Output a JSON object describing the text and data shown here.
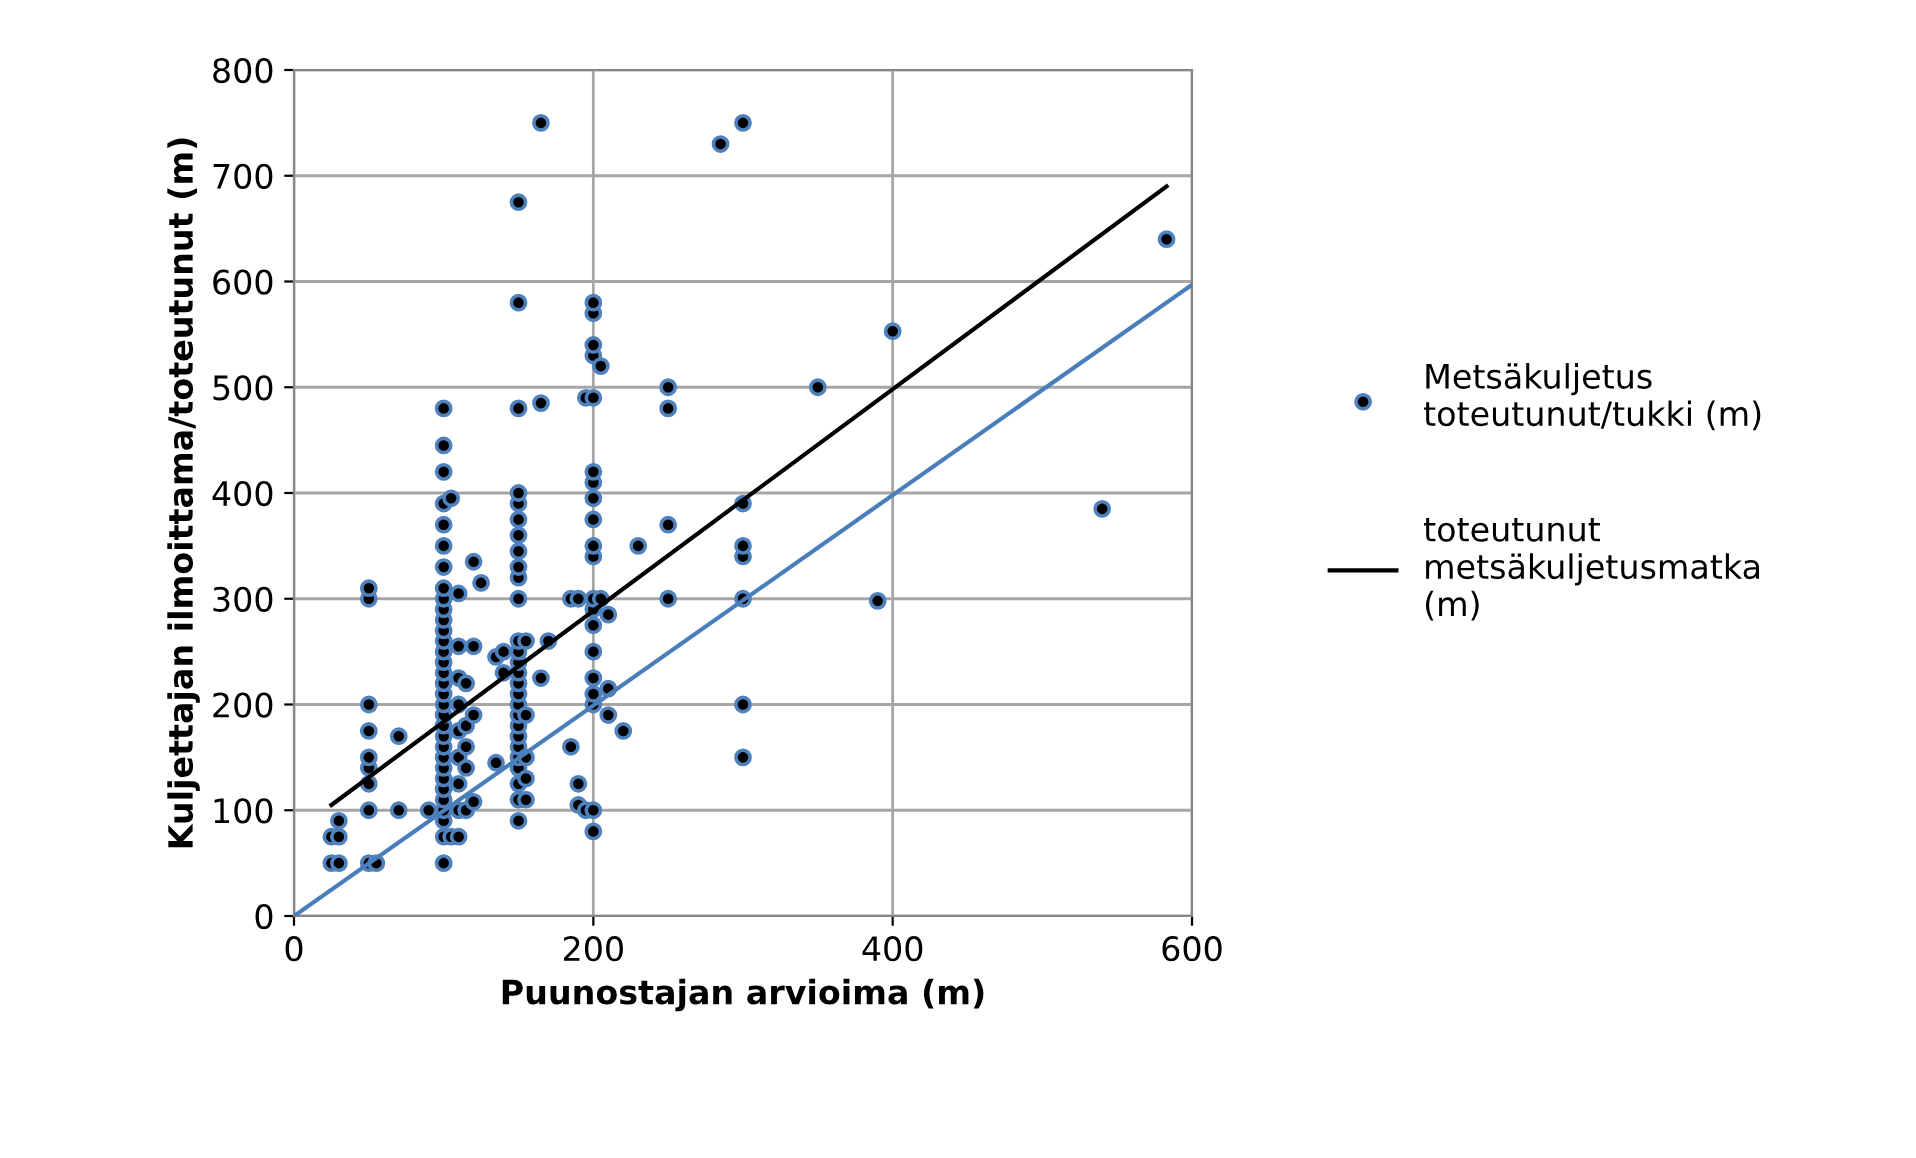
{
  "chart_data": {
    "type": "scatter",
    "xlabel": "Puunostajan arvioima (m)",
    "ylabel": "Kuljettajan ilmoittama/toteutunut (m)",
    "xlim": [
      0,
      600
    ],
    "xticks": [
      0,
      200,
      400,
      600
    ],
    "ylim": [
      0,
      800
    ],
    "yticks": [
      0,
      100,
      200,
      300,
      400,
      500,
      600,
      700,
      800
    ],
    "grid": true,
    "legend": "right",
    "marker": "circle",
    "series": [
      {
        "name": "Metsäkuljetus toteutunut/tukki (m)",
        "color": "#000000",
        "x": [
          25,
          30,
          25,
          30,
          30,
          50,
          50,
          50,
          50,
          50,
          50,
          50,
          50,
          50,
          55,
          70,
          70,
          90,
          100,
          100,
          100,
          100,
          100,
          100,
          100,
          100,
          100,
          100,
          100,
          100,
          100,
          100,
          100,
          100,
          100,
          100,
          100,
          100,
          100,
          100,
          100,
          100,
          100,
          100,
          100,
          100,
          100,
          100,
          100,
          100,
          105,
          105,
          110,
          110,
          110,
          110,
          110,
          110,
          110,
          110,
          110,
          115,
          115,
          115,
          115,
          115,
          120,
          120,
          120,
          120,
          125,
          135,
          135,
          140,
          140,
          150,
          150,
          150,
          150,
          150,
          150,
          150,
          150,
          150,
          150,
          150,
          150,
          150,
          150,
          150,
          150,
          150,
          150,
          150,
          150,
          150,
          150,
          150,
          150,
          150,
          150,
          150,
          155,
          155,
          155,
          155,
          155,
          165,
          165,
          165,
          170,
          185,
          185,
          190,
          190,
          190,
          195,
          195,
          200,
          200,
          200,
          200,
          200,
          200,
          200,
          200,
          200,
          200,
          200,
          200,
          200,
          200,
          200,
          200,
          200,
          200,
          200,
          200,
          205,
          205,
          210,
          210,
          210,
          220,
          230,
          250,
          250,
          250,
          250,
          285,
          300,
          300,
          300,
          300,
          300,
          300,
          300,
          350,
          390,
          400,
          540,
          583
        ],
        "values": [
          50,
          50,
          75,
          75,
          90,
          100,
          125,
          140,
          150,
          175,
          200,
          300,
          310,
          50,
          50,
          100,
          170,
          100,
          50,
          75,
          90,
          100,
          110,
          120,
          130,
          140,
          150,
          160,
          170,
          180,
          190,
          200,
          210,
          220,
          230,
          240,
          250,
          260,
          270,
          280,
          290,
          300,
          310,
          330,
          350,
          370,
          390,
          420,
          445,
          480,
          395,
          75,
          75,
          100,
          125,
          150,
          175,
          200,
          225,
          255,
          305,
          100,
          140,
          160,
          180,
          220,
          190,
          255,
          335,
          108,
          315,
          145,
          245,
          230,
          250,
          90,
          110,
          125,
          140,
          150,
          160,
          170,
          180,
          190,
          200,
          210,
          220,
          230,
          240,
          250,
          260,
          300,
          320,
          330,
          345,
          360,
          375,
          390,
          400,
          480,
          580,
          675,
          110,
          130,
          150,
          190,
          260,
          225,
          485,
          750,
          260,
          160,
          300,
          105,
          125,
          300,
          490,
          100,
          80,
          100,
          200,
          210,
          225,
          250,
          275,
          290,
          300,
          340,
          350,
          375,
          395,
          410,
          420,
          490,
          530,
          540,
          570,
          580,
          520,
          300,
          190,
          215,
          285,
          175,
          350,
          300,
          370,
          480,
          500,
          730,
          150,
          200,
          300,
          340,
          350,
          390,
          750,
          500,
          298,
          553,
          385,
          640
        ]
      },
      {
        "name": "toteutunut metsäkuljetusmatka (m)",
        "type": "line",
        "color": "#000000",
        "marker": "none",
        "x": [
          25,
          583
        ],
        "values": [
          105,
          690
        ]
      },
      {
        "type": "line",
        "color": "#4a7ebb",
        "marker": "none",
        "x": [
          0,
          600
        ],
        "values": [
          0,
          597
        ]
      }
    ]
  }
}
